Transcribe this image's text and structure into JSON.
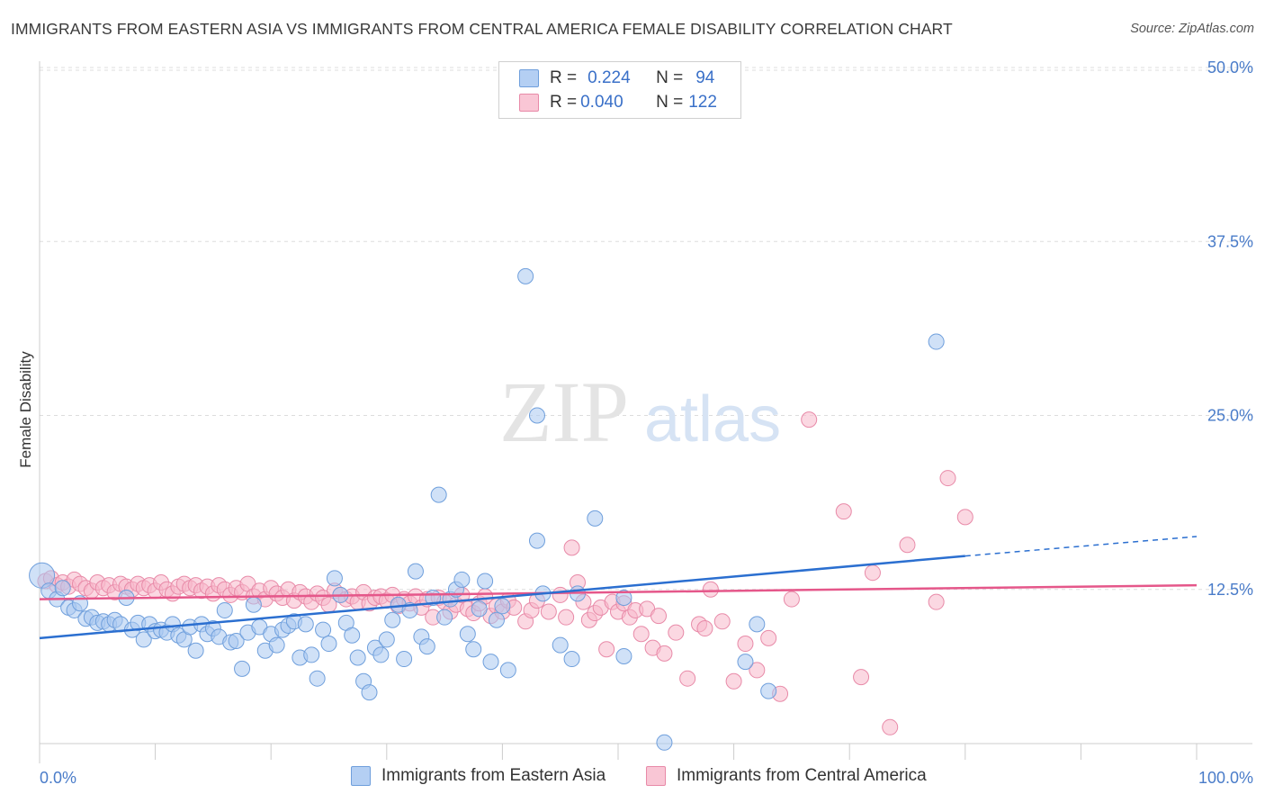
{
  "title": "IMMIGRANTS FROM EASTERN ASIA VS IMMIGRANTS FROM CENTRAL AMERICA FEMALE DISABILITY CORRELATION CHART",
  "source": "Source: ZipAtlas.com",
  "watermark": {
    "zip": "ZIP",
    "atlas": "atlas"
  },
  "legend": [
    {
      "r_label": "R =",
      "r_value": "0.224",
      "n_label": "N =",
      "n_value": "94"
    },
    {
      "r_label": "R =",
      "r_value": "0.040",
      "n_label": "N =",
      "n_value": "122"
    }
  ],
  "colors": {
    "series1_fill": "#a9c8f0",
    "series1_stroke": "#6f9fdc",
    "series1_line": "#2b6fd0",
    "series2_fill": "#f7b8cb",
    "series2_stroke": "#e88aa8",
    "series2_line": "#e5578a",
    "axis_label": "#4a7cc9",
    "grid": "#dddddd"
  },
  "chart_data": {
    "type": "scatter",
    "title": "IMMIGRANTS FROM EASTERN ASIA VS IMMIGRANTS FROM CENTRAL AMERICA FEMALE DISABILITY CORRELATION CHART",
    "xlabel": "",
    "ylabel": "Female Disability",
    "xlim": [
      0,
      100
    ],
    "ylim": [
      0,
      50
    ],
    "x_tick_labels": [
      "0.0%",
      "100.0%"
    ],
    "y_ticks": [
      12.5,
      25.0,
      37.5,
      50.0
    ],
    "y_tick_labels": [
      "12.5%",
      "25.0%",
      "37.5%",
      "50.0%"
    ],
    "grid": "horizontal dashed",
    "legend_position": "top-center",
    "series": [
      {
        "name": "Immigrants from Eastern Asia",
        "R": 0.224,
        "N": 94,
        "trend": {
          "x": [
            0,
            80
          ],
          "y": [
            9.0,
            14.9
          ]
        },
        "trend_dashed": {
          "x": [
            80,
            100
          ],
          "y": [
            14.9,
            16.3
          ]
        },
        "points": [
          [
            0.2,
            13.5
          ],
          [
            0.8,
            12.4
          ],
          [
            1.5,
            11.8
          ],
          [
            2.0,
            12.6
          ],
          [
            2.5,
            11.2
          ],
          [
            3.0,
            11.0
          ],
          [
            3.5,
            11.5
          ],
          [
            4.0,
            10.4
          ],
          [
            4.5,
            10.5
          ],
          [
            5.0,
            10.1
          ],
          [
            5.5,
            10.2
          ],
          [
            6.0,
            10.0
          ],
          [
            6.5,
            10.3
          ],
          [
            7.0,
            10.0
          ],
          [
            7.5,
            11.9
          ],
          [
            8.0,
            9.6
          ],
          [
            8.5,
            10.1
          ],
          [
            9.0,
            8.9
          ],
          [
            9.5,
            10.0
          ],
          [
            10.0,
            9.5
          ],
          [
            10.5,
            9.6
          ],
          [
            11.0,
            9.4
          ],
          [
            11.5,
            10.0
          ],
          [
            12.0,
            9.2
          ],
          [
            12.5,
            8.9
          ],
          [
            13.0,
            9.8
          ],
          [
            13.5,
            8.1
          ],
          [
            14.0,
            10.0
          ],
          [
            14.5,
            9.3
          ],
          [
            15.0,
            9.7
          ],
          [
            15.5,
            9.1
          ],
          [
            16.0,
            11.0
          ],
          [
            16.5,
            8.7
          ],
          [
            17.0,
            8.8
          ],
          [
            17.5,
            6.8
          ],
          [
            18.0,
            9.4
          ],
          [
            18.5,
            11.4
          ],
          [
            19.0,
            9.8
          ],
          [
            19.5,
            8.1
          ],
          [
            20.0,
            9.3
          ],
          [
            20.5,
            8.5
          ],
          [
            21.0,
            9.6
          ],
          [
            21.5,
            9.9
          ],
          [
            22.0,
            10.2
          ],
          [
            22.5,
            7.6
          ],
          [
            23.0,
            10.0
          ],
          [
            23.5,
            7.8
          ],
          [
            24.0,
            6.1
          ],
          [
            24.5,
            9.6
          ],
          [
            25.0,
            8.6
          ],
          [
            25.5,
            13.3
          ],
          [
            26.0,
            12.1
          ],
          [
            26.5,
            10.1
          ],
          [
            27.0,
            9.2
          ],
          [
            27.5,
            7.6
          ],
          [
            28.0,
            5.9
          ],
          [
            28.5,
            5.1
          ],
          [
            29.0,
            8.3
          ],
          [
            29.5,
            7.8
          ],
          [
            30.0,
            8.9
          ],
          [
            30.5,
            10.3
          ],
          [
            31.0,
            11.4
          ],
          [
            31.5,
            7.5
          ],
          [
            32.0,
            11.0
          ],
          [
            32.5,
            13.8
          ],
          [
            33.0,
            9.1
          ],
          [
            33.5,
            8.4
          ],
          [
            34.0,
            11.9
          ],
          [
            34.5,
            19.3
          ],
          [
            35.0,
            10.5
          ],
          [
            35.5,
            11.8
          ],
          [
            36.0,
            12.5
          ],
          [
            36.5,
            13.2
          ],
          [
            37.0,
            9.3
          ],
          [
            37.5,
            8.2
          ],
          [
            38.0,
            11.1
          ],
          [
            38.5,
            13.1
          ],
          [
            39.0,
            7.3
          ],
          [
            39.5,
            10.3
          ],
          [
            40.0,
            11.3
          ],
          [
            40.5,
            6.7
          ],
          [
            42.0,
            35.0
          ],
          [
            43.0,
            25.0
          ],
          [
            43.0,
            16.0
          ],
          [
            43.5,
            12.2
          ],
          [
            45.0,
            8.5
          ],
          [
            46.0,
            7.5
          ],
          [
            46.5,
            12.2
          ],
          [
            48.0,
            17.6
          ],
          [
            50.5,
            11.9
          ],
          [
            50.5,
            7.7
          ],
          [
            54.0,
            1.5
          ],
          [
            61.0,
            7.3
          ],
          [
            62.0,
            10.0
          ],
          [
            63.0,
            5.2
          ],
          [
            77.5,
            30.3
          ]
        ]
      },
      {
        "name": "Immigrants from Central America",
        "R": 0.04,
        "N": 122,
        "trend": {
          "x": [
            0,
            100
          ],
          "y": [
            11.8,
            12.8
          ]
        },
        "points": [
          [
            0.5,
            13.1
          ],
          [
            1.0,
            13.3
          ],
          [
            1.5,
            12.8
          ],
          [
            2.0,
            13.0
          ],
          [
            2.5,
            12.7
          ],
          [
            3.0,
            13.2
          ],
          [
            3.5,
            12.9
          ],
          [
            4.0,
            12.6
          ],
          [
            4.5,
            12.4
          ],
          [
            5.0,
            13.0
          ],
          [
            5.5,
            12.6
          ],
          [
            6.0,
            12.8
          ],
          [
            6.5,
            12.3
          ],
          [
            7.0,
            12.9
          ],
          [
            7.5,
            12.7
          ],
          [
            8.0,
            12.5
          ],
          [
            8.5,
            12.9
          ],
          [
            9.0,
            12.6
          ],
          [
            9.5,
            12.8
          ],
          [
            10.0,
            12.4
          ],
          [
            10.5,
            13.0
          ],
          [
            11.0,
            12.5
          ],
          [
            11.5,
            12.2
          ],
          [
            12.0,
            12.7
          ],
          [
            12.5,
            12.9
          ],
          [
            13.0,
            12.6
          ],
          [
            13.5,
            12.8
          ],
          [
            14.0,
            12.4
          ],
          [
            14.5,
            12.7
          ],
          [
            15.0,
            12.2
          ],
          [
            15.5,
            12.8
          ],
          [
            16.0,
            12.5
          ],
          [
            16.5,
            12.1
          ],
          [
            17.0,
            12.6
          ],
          [
            17.5,
            12.3
          ],
          [
            18.0,
            12.9
          ],
          [
            18.5,
            12.0
          ],
          [
            19.0,
            12.4
          ],
          [
            19.5,
            11.8
          ],
          [
            20.0,
            12.6
          ],
          [
            20.5,
            12.2
          ],
          [
            21.0,
            11.9
          ],
          [
            21.5,
            12.5
          ],
          [
            22.0,
            11.7
          ],
          [
            22.5,
            12.3
          ],
          [
            23.0,
            12.0
          ],
          [
            23.5,
            11.6
          ],
          [
            24.0,
            12.2
          ],
          [
            24.5,
            11.9
          ],
          [
            25.0,
            11.4
          ],
          [
            25.5,
            12.4
          ],
          [
            26.0,
            12.1
          ],
          [
            26.5,
            11.8
          ],
          [
            27.0,
            12.0
          ],
          [
            27.5,
            11.6
          ],
          [
            28.0,
            12.3
          ],
          [
            28.5,
            11.5
          ],
          [
            29.0,
            11.9
          ],
          [
            29.5,
            12.0
          ],
          [
            30.0,
            11.7
          ],
          [
            30.5,
            12.1
          ],
          [
            31.0,
            11.3
          ],
          [
            31.5,
            11.8
          ],
          [
            32.0,
            11.5
          ],
          [
            32.5,
            12.0
          ],
          [
            33.0,
            11.2
          ],
          [
            33.5,
            11.8
          ],
          [
            34.0,
            10.5
          ],
          [
            34.5,
            11.9
          ],
          [
            35.0,
            11.6
          ],
          [
            35.5,
            10.9
          ],
          [
            36.0,
            11.4
          ],
          [
            36.5,
            12.1
          ],
          [
            37.0,
            11.1
          ],
          [
            37.5,
            10.8
          ],
          [
            38.0,
            11.5
          ],
          [
            38.5,
            12.0
          ],
          [
            39.0,
            10.6
          ],
          [
            39.5,
            11.3
          ],
          [
            40.0,
            10.9
          ],
          [
            40.5,
            11.7
          ],
          [
            41.0,
            11.2
          ],
          [
            42.0,
            10.2
          ],
          [
            42.5,
            11.0
          ],
          [
            43.0,
            11.7
          ],
          [
            44.0,
            10.9
          ],
          [
            45.0,
            12.1
          ],
          [
            45.5,
            10.5
          ],
          [
            46.0,
            15.5
          ],
          [
            46.5,
            13.0
          ],
          [
            47.0,
            11.6
          ],
          [
            47.5,
            10.3
          ],
          [
            48.0,
            10.8
          ],
          [
            48.5,
            11.2
          ],
          [
            49.0,
            8.2
          ],
          [
            49.5,
            11.6
          ],
          [
            50.0,
            10.9
          ],
          [
            50.5,
            11.5
          ],
          [
            51.0,
            10.5
          ],
          [
            51.5,
            11.0
          ],
          [
            52.0,
            9.3
          ],
          [
            52.5,
            11.1
          ],
          [
            53.0,
            8.3
          ],
          [
            53.5,
            10.6
          ],
          [
            54.0,
            7.9
          ],
          [
            55.0,
            9.4
          ],
          [
            56.0,
            6.1
          ],
          [
            57.0,
            10.0
          ],
          [
            57.5,
            9.7
          ],
          [
            58.0,
            12.5
          ],
          [
            59.0,
            10.2
          ],
          [
            60.0,
            5.9
          ],
          [
            61.0,
            8.6
          ],
          [
            62.0,
            6.7
          ],
          [
            63.0,
            9.0
          ],
          [
            64.0,
            5.0
          ],
          [
            65.0,
            11.8
          ],
          [
            66.5,
            24.7
          ],
          [
            69.5,
            18.1
          ],
          [
            71.0,
            6.2
          ],
          [
            72.0,
            13.7
          ],
          [
            73.5,
            2.6
          ],
          [
            75.0,
            15.7
          ],
          [
            77.5,
            11.6
          ],
          [
            78.5,
            20.5
          ],
          [
            80.0,
            17.7
          ]
        ]
      }
    ]
  },
  "bottom_legend": [
    "Immigrants from Eastern Asia",
    "Immigrants from Central America"
  ]
}
